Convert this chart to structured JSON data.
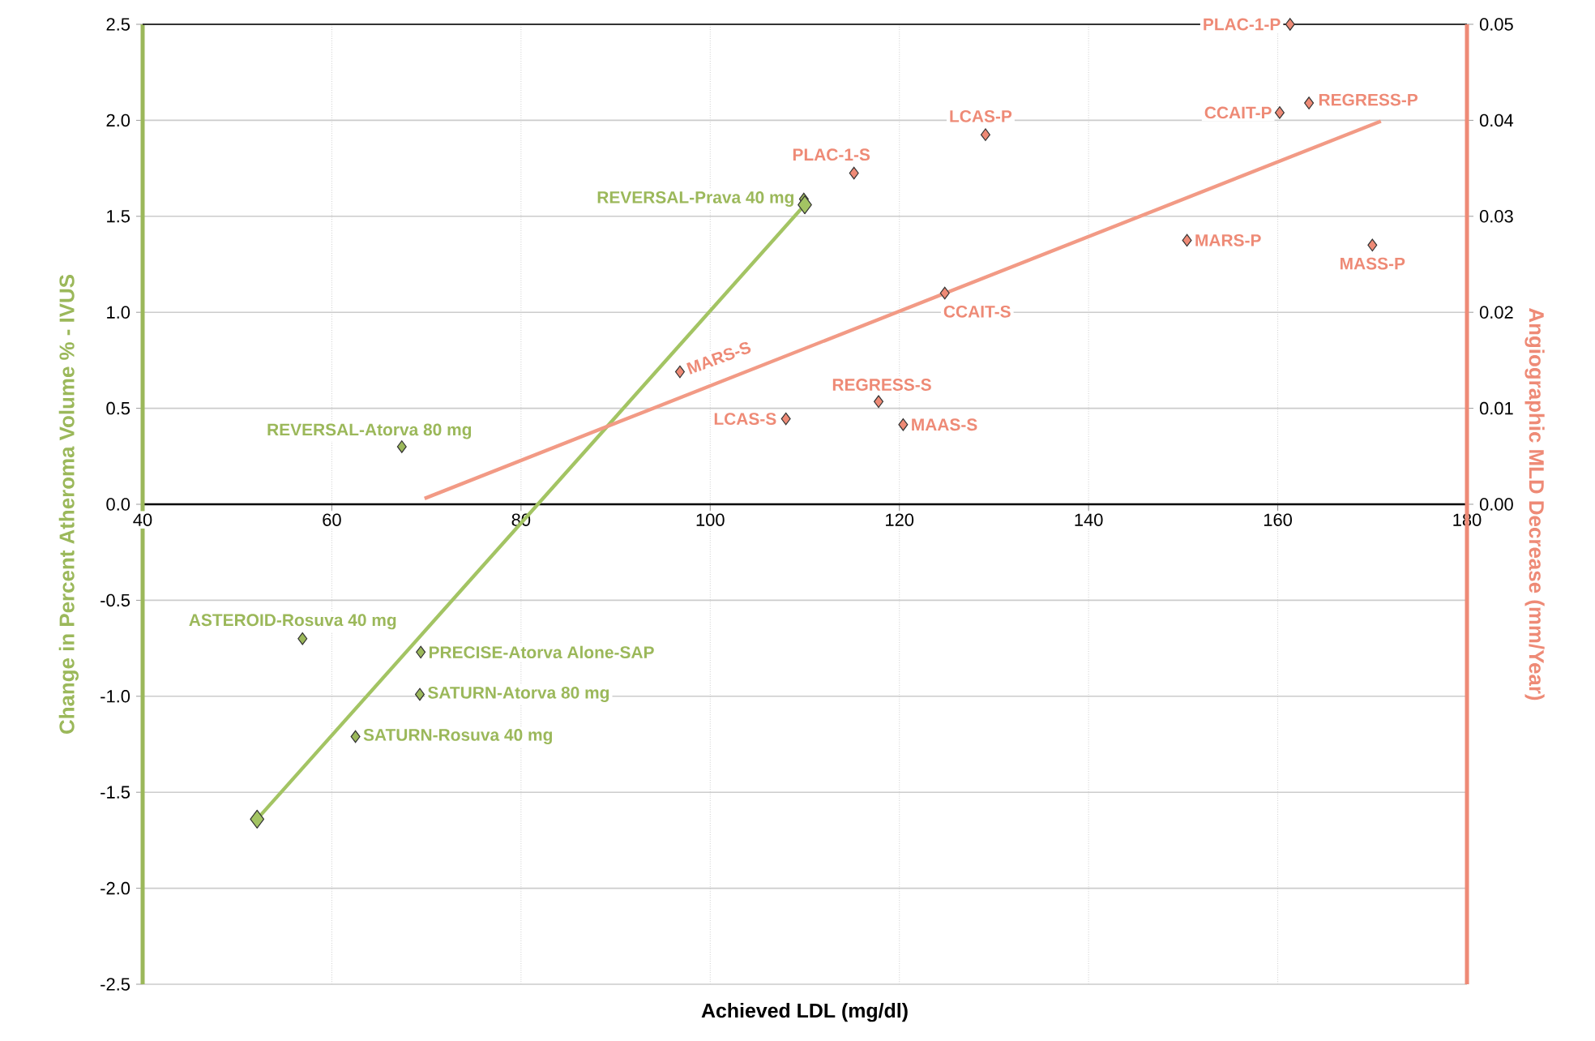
{
  "chart_data": {
    "type": "scatter",
    "xlabel": "Achieved LDL (mg/dl)",
    "ylabel": "Change in Percent Atheroma Volume % - IVUS",
    "y2label": "Angiographic MLD Decrease (mm/Year)",
    "xlim": [
      40,
      180
    ],
    "xticks": [
      40,
      60,
      80,
      100,
      120,
      140,
      160,
      180
    ],
    "ylim": [
      -2.5,
      2.5
    ],
    "yticks": [
      {
        "value": -2.5,
        "label": "-2.5"
      },
      {
        "value": -2,
        "label": "-2.0"
      },
      {
        "value": -1.5,
        "label": "-1.5"
      },
      {
        "value": -1,
        "label": "-1.0"
      },
      {
        "value": -0.5,
        "label": "-0.5"
      },
      {
        "value": 0,
        "label": "0.0"
      },
      {
        "value": 0.5,
        "label": "0.5"
      },
      {
        "value": 1,
        "label": "1.0"
      },
      {
        "value": 1.5,
        "label": "1.5"
      },
      {
        "value": 2,
        "label": "2.0"
      },
      {
        "value": 2.5,
        "label": "2.5"
      }
    ],
    "y2lim": [
      -0.05,
      0.05
    ],
    "y2ticks": [
      {
        "value": 0,
        "label": "0.00"
      },
      {
        "value": 0.01,
        "label": "0.01"
      },
      {
        "value": 0.02,
        "label": "0.02"
      },
      {
        "value": 0.03,
        "label": "0.03"
      },
      {
        "value": 0.04,
        "label": "0.04"
      },
      {
        "value": 0.05,
        "label": "0.05"
      }
    ],
    "grid": true,
    "series": [
      {
        "type": "scatter",
        "marker": "diamond",
        "color": "#9bb85a",
        "x": [
          67.4,
          109.9,
          56.9,
          69.4,
          69.3,
          62.5
        ],
        "values": [
          0.3,
          1.59,
          -0.7,
          -0.77,
          -0.99,
          -1.21
        ],
        "value_labels": [
          "REVERSAL-Atorva 80 mg",
          "REVERSAL-Prava 40 mg",
          "ASTEROID-Rosuva 40 mg",
          "PRECISE-Atorva Alone-SAP",
          "SATURN-Atorva 80 mg",
          "SATURN-Rosuva 40 mg"
        ]
      },
      {
        "type": "line",
        "marker": "diamond",
        "color": "#a3c463",
        "x": [
          52.1,
          110
        ],
        "values": [
          -1.64,
          1.56
        ]
      },
      {
        "type": "scatter",
        "axis": "y2",
        "marker": "diamond",
        "color": "#ee8a76",
        "x": [
          161.3,
          160.2,
          163.3,
          129.1,
          115.2,
          150.4,
          170,
          124.8,
          117.8,
          120.4,
          108,
          96.8
        ],
        "values": [
          0.05,
          0.0408,
          0.0418,
          0.0385,
          0.0345,
          0.0275,
          0.027,
          0.022,
          0.0107,
          0.0083,
          0.0089,
          0.0138
        ],
        "value_labels": [
          "PLAC-1-P",
          "CCAIT-P",
          "REGRESS-P",
          "LCAS-P",
          "PLAC-1-S",
          "MARS-P",
          "MASS-P",
          "CCAIT-S",
          "REGRESS-S",
          "MAAS-S",
          "LCAS-S",
          "MARS-S"
        ]
      },
      {
        "type": "line",
        "axis": "y2",
        "marker": "none",
        "color": "#f29a85",
        "x": [
          69.8,
          170.9
        ],
        "values": [
          0.0006,
          0.0399
        ]
      }
    ]
  }
}
